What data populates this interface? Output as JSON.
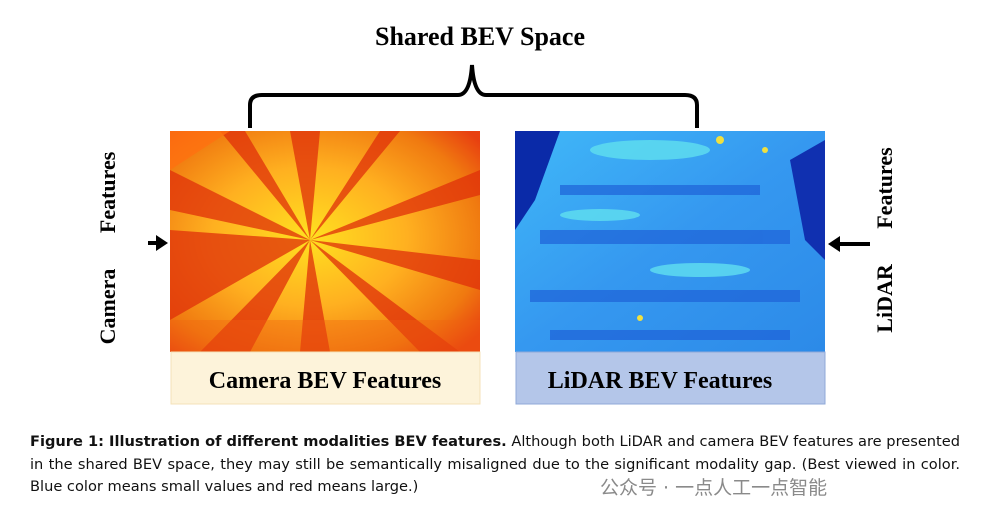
{
  "figure": {
    "title": "Shared BEV Space",
    "left_side_label": "Camera Features",
    "right_side_label": "LiDAR Features",
    "left_panel_label": "Camera BEV Features",
    "right_panel_label": "LiDAR BEV Features"
  },
  "caption": {
    "lead": "Figure 1: Illustration of different modalities BEV features.",
    "text": "Although both LiDAR and camera BEV features are presented in the shared BEV space, they may still be semantically misaligned due to the significant modality gap. (Best viewed in color. Blue color means small values and red means large.)"
  },
  "watermark": "公众号 · 一点人工一点智能"
}
